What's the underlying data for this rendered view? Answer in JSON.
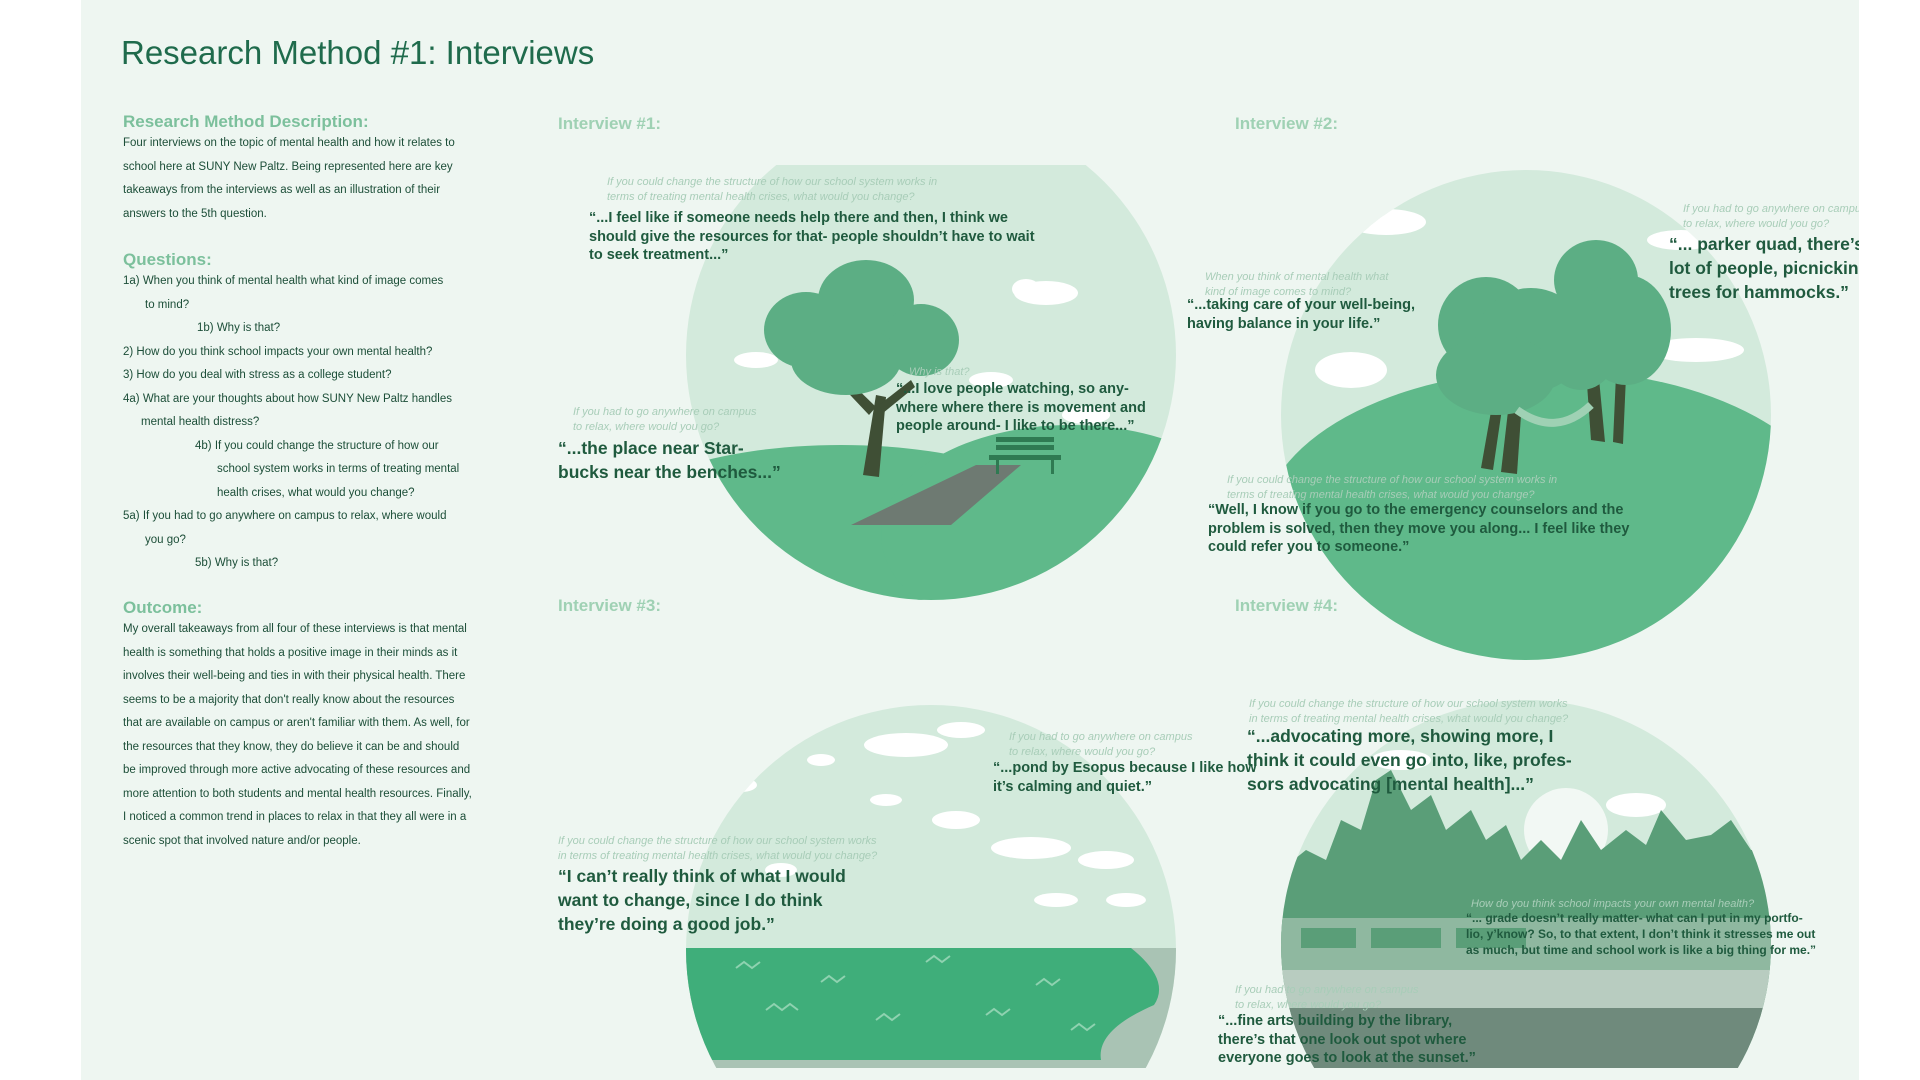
{
  "title": "Research Method #1: Interviews",
  "description": {
    "heading": "Research Method Description:",
    "lines": [
      "Four interviews on the topic of mental health and how it relates to",
      "school here at SUNY New Paltz. Being represented here are key",
      "takeaways from the interviews as well as an illustration of their",
      "answers to the 5th question."
    ]
  },
  "questions": {
    "heading": "Questions:",
    "items": [
      "1a) When you think of mental health what kind of image comes",
      "to mind?",
      "1b) Why is that?",
      "2) How do you think school impacts your own mental health?",
      "3) How do you deal with stress as a college student?",
      "4a) What are your thoughts about how SUNY New Paltz handles",
      "mental health distress?",
      "4b) If you could change the structure of how our",
      "school system works in terms of treating mental",
      "health crises, what would you change?",
      "5a) If you had to go anywhere on campus to relax, where would",
      "you go?",
      "5b) Why is that?"
    ]
  },
  "outcome": {
    "heading": "Outcome:",
    "lines": [
      "My overall takeaways from all four of these interviews is that mental",
      "health is something that holds a positive image in their minds as it",
      "involves their well-being and ties in with their physical health. There",
      "seems to be a majority that don't really know about the resources",
      "that are available on campus or aren't familiar with them. As well, for",
      "the resources that they know, they do believe it can be and should",
      "be improved through more active advocating of these resources and",
      "more attention to both students and mental health resources. Finally,",
      "I noticed a common trend in places to relax in that they all were in a",
      "scenic spot that involved nature and/or people."
    ]
  },
  "interviews": {
    "i1": {
      "heading": "Interview #1:",
      "q_change": [
        "If you could change the structure of how our school system works in",
        "terms of treating mental health crises, what would you change?"
      ],
      "a_change": [
        "“...I feel like if someone needs help there and then, I think we",
        "should give the resources for that- people shouldn’t have to wait",
        "to seek treatment...”"
      ],
      "q_relax": [
        "If you had to go anywhere on campus",
        "to relax, where would you go?"
      ],
      "a_relax": [
        "“...the place near Star-",
        "bucks near the benches...”"
      ],
      "q_why": "Why is that?",
      "a_why": [
        "“...I love people watching, so any-",
        "where where there is movement and",
        "people around- I like to be there...”"
      ]
    },
    "i2": {
      "heading": "Interview #2:",
      "q_relax": [
        "If you had to go anywhere on campus",
        "to relax, where would you go?"
      ],
      "a_relax": [
        "“... parker quad, there’s a",
        "lot of people, picnicking,",
        "trees for hammocks.”"
      ],
      "q_image": [
        "When you think of mental health what",
        "kind of image comes to mind?"
      ],
      "a_image": [
        "“...taking care of your well-being,",
        "having balance in your life.”"
      ],
      "q_change": [
        "If you could change the structure of how our school system works in",
        "terms of treating mental health crises, what would you change?"
      ],
      "a_change": [
        "“Well, I know if you go to the emergency counselors and the",
        "problem is solved, then they move you along... I feel like they",
        "could refer you to someone.”"
      ]
    },
    "i3": {
      "heading": "Interview #3:",
      "q_relax": [
        "If you had to go anywhere on campus",
        "to relax, where would you go?"
      ],
      "a_relax": [
        "“...pond by Esopus because I like how",
        "it’s calming and quiet.”"
      ],
      "q_change": [
        "If you could change the structure of how our school system works",
        "in terms of treating mental health crises, what would you change?"
      ],
      "a_change": [
        "“I can’t really think of what I would",
        "want to change, since I do think",
        "they’re doing a good job.”"
      ]
    },
    "i4": {
      "heading": "Interview #4:",
      "q_change": [
        "If you could change the structure of how our school system works",
        "in terms of treating mental health crises, what would you change?"
      ],
      "a_change": [
        "“...advocating more, showing more, I",
        "think it could even go into, like, profes-",
        "sors advocating [mental health]...”"
      ],
      "q_impact": "How do you think school impacts your own mental health?",
      "a_impact": [
        "“... grade doesn’t really matter- what can I put in my portfo-",
        "lio, y’know? So, to that extent, I don’t think it stresses me out",
        "as much, but time and school work is like a big thing for me.”"
      ],
      "q_relax": [
        "If you had to go anywhere on campus",
        "to relax, where would you go?"
      ],
      "a_relax": [
        "“...fine arts building by the library,",
        "there’s that one look out spot where",
        "everyone goes to look at the sunset.”"
      ]
    }
  },
  "colors": {
    "background": "#eef6f1",
    "title": "#1f6b4c",
    "heading": "#7cc09c",
    "sky": "#d3eadc",
    "grass": "#5fb98a",
    "tree": "#5cae84",
    "trunk": "#3f4f35",
    "quote": "#1f5a3e"
  }
}
